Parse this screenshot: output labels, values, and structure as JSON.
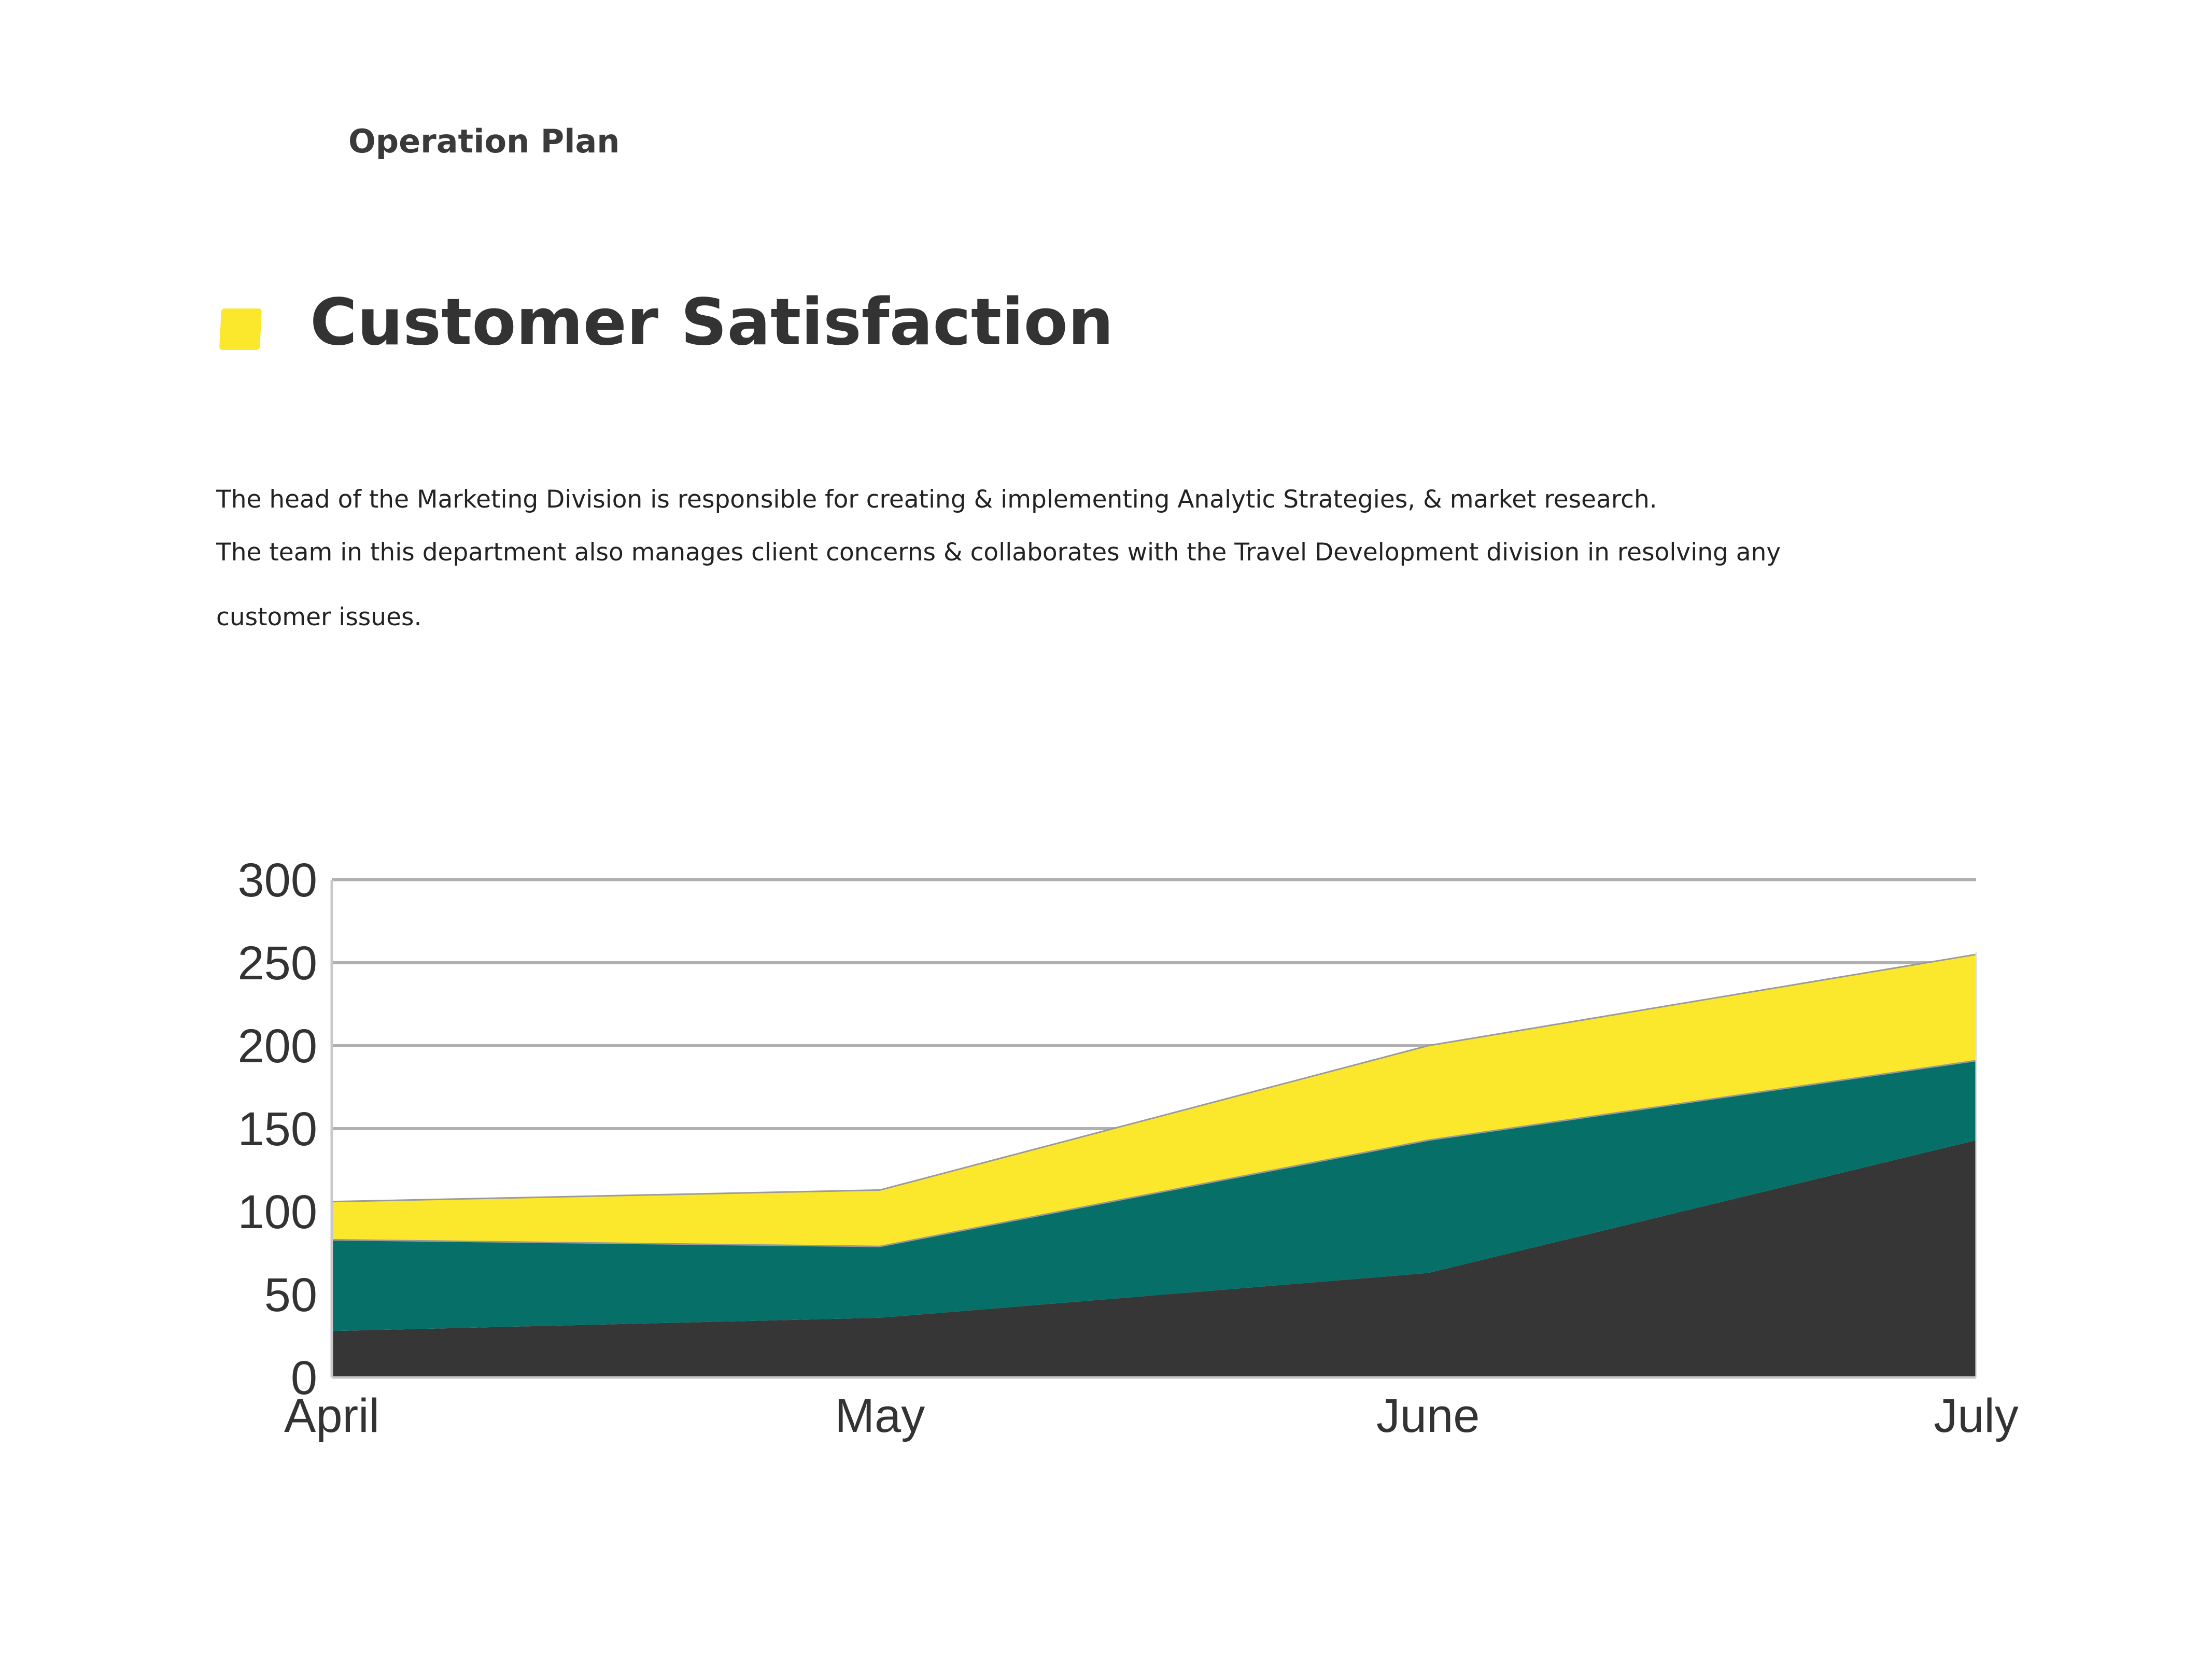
{
  "header": {
    "label": "Operation Plan"
  },
  "title": {
    "text": "Customer Satisfaction",
    "marker_color": "#fbe72b"
  },
  "description": {
    "lines": [
      "The head of the Marketing Division is responsible for creating & implementing Analytic Strategies, & market research.",
      "The team in this department also manages client concerns & collaborates with the Travel Development division in resolving any",
      "customer issues."
    ]
  },
  "colors": {
    "gridline": "#b0b0b0",
    "axis": "#c8c8c8",
    "series": [
      "#363636",
      "#056f68",
      "#fbe72b"
    ]
  },
  "chart_data": {
    "type": "area",
    "stacked": true,
    "categories": [
      "April",
      "May",
      "June",
      "July"
    ],
    "series": [
      {
        "values": [
          28,
          36,
          63,
          143
        ]
      },
      {
        "values": [
          55,
          43,
          80,
          48
        ]
      },
      {
        "values": [
          23,
          34,
          57,
          64
        ]
      }
    ],
    "ylim": [
      0,
      300
    ],
    "yticks": [
      0,
      50,
      100,
      150,
      200,
      250,
      300
    ],
    "grid": true,
    "legend": "none",
    "title": "",
    "xlabel": "",
    "ylabel": ""
  }
}
